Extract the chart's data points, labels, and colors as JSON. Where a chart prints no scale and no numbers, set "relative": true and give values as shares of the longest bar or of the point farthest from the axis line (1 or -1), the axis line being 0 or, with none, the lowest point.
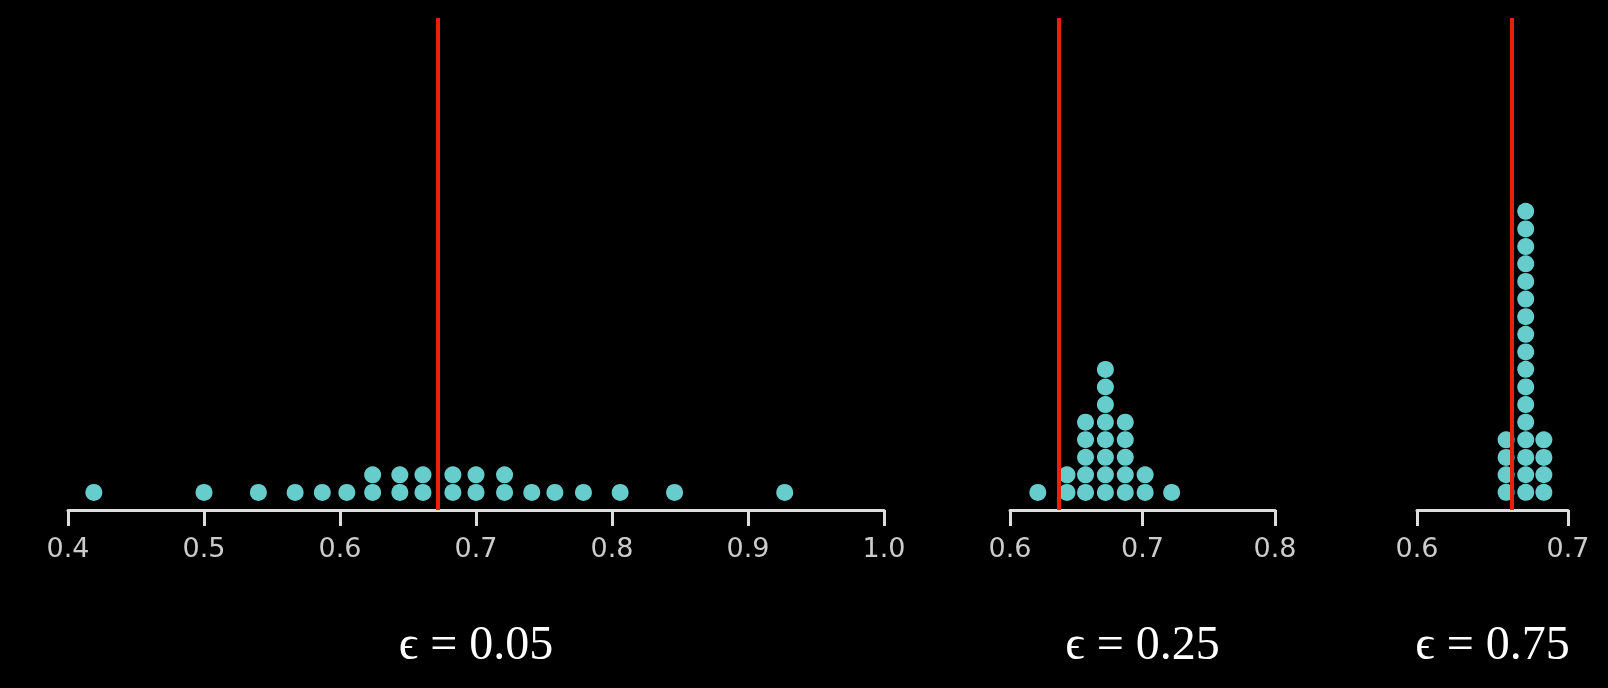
{
  "chart_data": [
    {
      "type": "scatter",
      "xlabel": "ϵ = 0.05",
      "marker": "circle",
      "tick_labels": "x",
      "relative": true,
      "series": [
        {
          "color": "#66cccc",
          "x": [
            0.419,
            0.5,
            0.54,
            0.567,
            0.587,
            0.605,
            0.624,
            0.624,
            0.644,
            0.644,
            0.661,
            0.661,
            0.683,
            0.683,
            0.7,
            0.7,
            0.721,
            0.721,
            0.741,
            0.758,
            0.779,
            0.806,
            0.846,
            0.927
          ],
          "values": [
            0.5,
            0.5,
            0.5,
            0.5,
            0.5,
            0.5,
            0.5,
            1,
            0.5,
            1,
            0.5,
            1,
            0.5,
            1,
            0.5,
            1,
            0.5,
            1,
            0.5,
            0.5,
            0.5,
            0.5,
            0.5,
            0.5
          ]
        }
      ],
      "xlim": [
        0.4,
        1.0
      ],
      "xticks": [
        0.4,
        0.5,
        0.6,
        0.7,
        0.8,
        0.9,
        {
          "value": 1.0,
          "label": "1.0"
        }
      ],
      "ref_lines": [
        {
          "axis": "x",
          "value": 0.672,
          "color": "#e8200c"
        }
      ]
    },
    {
      "type": "scatter",
      "xlabel": "ϵ = 0.25",
      "marker": "circle",
      "tick_labels": "x",
      "relative": true,
      "series": [
        {
          "color": "#66cccc",
          "x": [
            0.621,
            0.643,
            0.643,
            0.657,
            0.657,
            0.657,
            0.657,
            0.657,
            0.672,
            0.672,
            0.672,
            0.672,
            0.672,
            0.672,
            0.672,
            0.672,
            0.687,
            0.687,
            0.687,
            0.687,
            0.687,
            0.702,
            0.702,
            0.722
          ],
          "values": [
            0.125,
            0.125,
            0.25,
            0.125,
            0.25,
            0.375,
            0.5,
            0.625,
            0.125,
            0.25,
            0.375,
            0.5,
            0.625,
            0.75,
            0.875,
            1,
            0.125,
            0.25,
            0.375,
            0.5,
            0.625,
            0.125,
            0.25,
            0.125
          ]
        }
      ],
      "xlim": [
        0.6,
        0.8
      ],
      "xticks": [
        0.6,
        0.7,
        0.8
      ],
      "ref_lines": [
        {
          "axis": "x",
          "value": 0.637,
          "color": "#e8200c"
        }
      ]
    },
    {
      "type": "scatter",
      "xlabel": "ϵ = 0.75",
      "marker": "circle",
      "tick_labels": "x",
      "relative": true,
      "series": [
        {
          "color": "#66cccc",
          "x": [
            0.659,
            0.659,
            0.659,
            0.659,
            0.672,
            0.672,
            0.672,
            0.672,
            0.672,
            0.672,
            0.672,
            0.672,
            0.672,
            0.672,
            0.672,
            0.672,
            0.672,
            0.672,
            0.672,
            0.672,
            0.672,
            0.684,
            0.684,
            0.684,
            0.684
          ],
          "values": [
            0.059,
            0.118,
            0.176,
            0.235,
            0.059,
            0.118,
            0.176,
            0.235,
            0.294,
            0.353,
            0.412,
            0.471,
            0.529,
            0.588,
            0.647,
            0.706,
            0.765,
            0.824,
            0.882,
            0.941,
            1,
            0.059,
            0.118,
            0.176,
            0.235
          ]
        }
      ],
      "xlim": [
        0.6,
        0.7
      ],
      "xticks": [
        0.6,
        0.7
      ],
      "ref_lines": [
        {
          "axis": "x",
          "value": 0.663,
          "color": "#e8200c"
        }
      ]
    }
  ]
}
